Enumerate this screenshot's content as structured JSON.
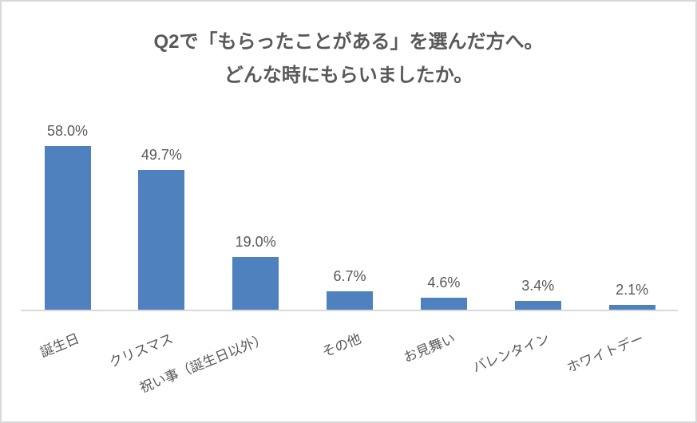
{
  "chart_data": {
    "type": "bar",
    "title": "Q2で「もらったことがある」を選んだ方へ。どんな時にもらいましたか。",
    "title_lines": [
      "Q2で「もらったことがある」を選んだ方へ。",
      "どんな時にもらいましたか。"
    ],
    "categories": [
      "誕生日",
      "クリスマス",
      "祝い事（誕生日以外）",
      "その他",
      "お見舞い",
      "バレンタイン",
      "ホワイトデー"
    ],
    "values": [
      58.0,
      49.7,
      19.0,
      6.7,
      4.6,
      3.4,
      2.1
    ],
    "data_labels": [
      "58.0%",
      "49.7%",
      "19.0%",
      "6.7%",
      "4.6%",
      "3.4%",
      "2.1%"
    ],
    "unit": "%",
    "xlabel": "",
    "ylabel": "",
    "ylim": [
      0,
      70
    ],
    "grid": false,
    "legend": "none",
    "bar_color": "#4e81bd",
    "title_color": "#595959",
    "label_color": "#595959",
    "axis_line_color": "#d9d9d9",
    "category_label_rotation_deg": -22
  }
}
